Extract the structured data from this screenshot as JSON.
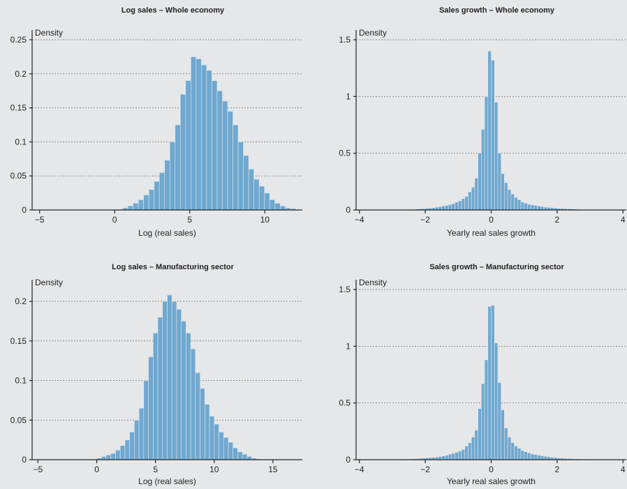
{
  "chart_data": [
    {
      "type": "bar",
      "title": "Log sales – Whole economy",
      "xlabel": "Log (real sales)",
      "ylabel": "Density",
      "xlim": [
        -5.5,
        12.5
      ],
      "ylim": [
        0,
        0.25
      ],
      "xticks": [
        -5,
        0,
        5,
        10
      ],
      "xtick_labels": [
        "−5",
        "0",
        "5",
        "10"
      ],
      "yticks": [
        0,
        0.05,
        0.1,
        0.15,
        0.2,
        0.25
      ],
      "ytick_labels": [
        "0",
        "0.05",
        "0.1",
        "0.15",
        "0.2",
        "0.25"
      ],
      "grid": true,
      "bin_width": 0.35,
      "x": [
        0.35,
        0.7,
        1.05,
        1.4,
        1.75,
        2.1,
        2.45,
        2.8,
        3.15,
        3.5,
        3.85,
        4.2,
        4.55,
        4.9,
        5.25,
        5.6,
        5.95,
        6.3,
        6.65,
        7.0,
        7.35,
        7.7,
        8.05,
        8.4,
        8.75,
        9.1,
        9.45,
        9.8,
        10.15,
        10.5,
        10.85,
        11.2,
        11.55,
        11.9
      ],
      "values": [
        0.001,
        0.003,
        0.006,
        0.01,
        0.015,
        0.022,
        0.03,
        0.042,
        0.055,
        0.073,
        0.1,
        0.125,
        0.17,
        0.19,
        0.225,
        0.222,
        0.213,
        0.205,
        0.19,
        0.175,
        0.16,
        0.145,
        0.125,
        0.1,
        0.08,
        0.06,
        0.045,
        0.035,
        0.025,
        0.015,
        0.01,
        0.006,
        0.003,
        0.002
      ]
    },
    {
      "type": "bar",
      "title": "Sales growth – Whole economy",
      "xlabel": "Yearly real sales growth",
      "ylabel": "Density",
      "xlim": [
        -4.1,
        4.1
      ],
      "ylim": [
        0,
        1.5
      ],
      "xticks": [
        -4,
        -2,
        0,
        2,
        4
      ],
      "xtick_labels": [
        "−4",
        "−2",
        "0",
        "2",
        "4"
      ],
      "yticks": [
        0,
        0.5,
        1,
        1.5
      ],
      "ytick_labels": [
        "0",
        "0.5",
        "1",
        "1.5"
      ],
      "grid": true,
      "bin_width": 0.1,
      "x": [
        -2.35,
        -2.25,
        -2.15,
        -2.05,
        -1.95,
        -1.85,
        -1.75,
        -1.65,
        -1.55,
        -1.45,
        -1.35,
        -1.25,
        -1.15,
        -1.05,
        -0.95,
        -0.85,
        -0.75,
        -0.65,
        -0.55,
        -0.45,
        -0.35,
        -0.25,
        -0.15,
        -0.05,
        0.05,
        0.15,
        0.25,
        0.35,
        0.45,
        0.55,
        0.65,
        0.75,
        0.85,
        0.95,
        1.05,
        1.15,
        1.25,
        1.35,
        1.45,
        1.55,
        1.65,
        1.75,
        1.85,
        1.95,
        2.05,
        2.15,
        2.25,
        2.35,
        2.45,
        2.55,
        2.65
      ],
      "values": [
        0.005,
        0.008,
        0.01,
        0.012,
        0.015,
        0.018,
        0.02,
        0.025,
        0.03,
        0.035,
        0.04,
        0.048,
        0.057,
        0.068,
        0.08,
        0.1,
        0.12,
        0.16,
        0.2,
        0.28,
        0.5,
        0.71,
        1.0,
        1.4,
        1.32,
        0.95,
        0.5,
        0.32,
        0.24,
        0.18,
        0.14,
        0.11,
        0.09,
        0.07,
        0.06,
        0.05,
        0.045,
        0.04,
        0.035,
        0.03,
        0.025,
        0.022,
        0.02,
        0.018,
        0.015,
        0.013,
        0.012,
        0.01,
        0.01,
        0.008,
        0.006
      ]
    },
    {
      "type": "bar",
      "title": "Log sales – Manufacturing sector",
      "xlabel": "Log (real sales)",
      "ylabel": "Density",
      "xlim": [
        -5.5,
        17.5
      ],
      "ylim": [
        0,
        0.215
      ],
      "xticks": [
        -5,
        0,
        5,
        10,
        15
      ],
      "xtick_labels": [
        "−5",
        "0",
        "5",
        "10",
        "15"
      ],
      "yticks": [
        0,
        0.05,
        0.1,
        0.15,
        0.2
      ],
      "ytick_labels": [
        "0",
        "0.05",
        "0.1",
        "0.15",
        "0.2"
      ],
      "grid": true,
      "bin_width": 0.4,
      "x": [
        0.2,
        0.6,
        1.0,
        1.4,
        1.8,
        2.2,
        2.6,
        3.0,
        3.4,
        3.8,
        4.2,
        4.6,
        5.0,
        5.4,
        5.8,
        6.2,
        6.6,
        7.0,
        7.4,
        7.8,
        8.2,
        8.6,
        9.0,
        9.4,
        9.8,
        10.2,
        10.6,
        11.0,
        11.4,
        11.8,
        12.2,
        12.6,
        13.0,
        13.4,
        13.8
      ],
      "values": [
        0.002,
        0.004,
        0.006,
        0.008,
        0.012,
        0.018,
        0.025,
        0.035,
        0.05,
        0.065,
        0.1,
        0.13,
        0.16,
        0.18,
        0.2,
        0.208,
        0.2,
        0.19,
        0.175,
        0.16,
        0.14,
        0.11,
        0.09,
        0.07,
        0.055,
        0.045,
        0.035,
        0.028,
        0.022,
        0.015,
        0.01,
        0.007,
        0.004,
        0.002,
        0.001
      ]
    },
    {
      "type": "bar",
      "title": "Sales growth – Manufacturing sector",
      "xlabel": "Yearly real sales growth",
      "ylabel": "Density",
      "xlim": [
        -4.1,
        4.1
      ],
      "ylim": [
        0,
        1.5
      ],
      "xticks": [
        -4,
        -2,
        0,
        2,
        4
      ],
      "xtick_labels": [
        "−4",
        "−2",
        "0",
        "2",
        "4"
      ],
      "yticks": [
        0,
        0.5,
        1,
        1.5
      ],
      "ytick_labels": [
        "0",
        "0.5",
        "1",
        "1.5"
      ],
      "grid": true,
      "bin_width": 0.1,
      "x": [
        -2.85,
        -2.75,
        -2.65,
        -2.55,
        -2.45,
        -2.35,
        -2.25,
        -2.15,
        -2.05,
        -1.95,
        -1.85,
        -1.75,
        -1.65,
        -1.55,
        -1.45,
        -1.35,
        -1.25,
        -1.15,
        -1.05,
        -0.95,
        -0.85,
        -0.75,
        -0.65,
        -0.55,
        -0.45,
        -0.35,
        -0.25,
        -0.15,
        -0.05,
        0.05,
        0.15,
        0.25,
        0.35,
        0.45,
        0.55,
        0.65,
        0.75,
        0.85,
        0.95,
        1.05,
        1.15,
        1.25,
        1.35,
        1.45,
        1.55,
        1.65,
        1.75,
        1.85,
        1.95,
        2.05,
        2.15,
        2.25,
        2.35,
        2.45,
        2.55,
        2.65,
        2.75,
        2.85,
        2.95,
        3.05,
        3.15,
        3.25
      ],
      "values": [
        0.003,
        0.004,
        0.005,
        0.006,
        0.007,
        0.008,
        0.01,
        0.012,
        0.014,
        0.016,
        0.018,
        0.02,
        0.024,
        0.028,
        0.033,
        0.04,
        0.048,
        0.056,
        0.065,
        0.075,
        0.09,
        0.12,
        0.15,
        0.2,
        0.26,
        0.45,
        0.67,
        0.88,
        1.35,
        1.36,
        1.03,
        0.68,
        0.44,
        0.28,
        0.2,
        0.15,
        0.12,
        0.1,
        0.08,
        0.07,
        0.06,
        0.05,
        0.045,
        0.04,
        0.035,
        0.03,
        0.026,
        0.022,
        0.019,
        0.016,
        0.014,
        0.012,
        0.01,
        0.009,
        0.008,
        0.007,
        0.006,
        0.005,
        0.004,
        0.003,
        0.003,
        0.002
      ]
    }
  ]
}
